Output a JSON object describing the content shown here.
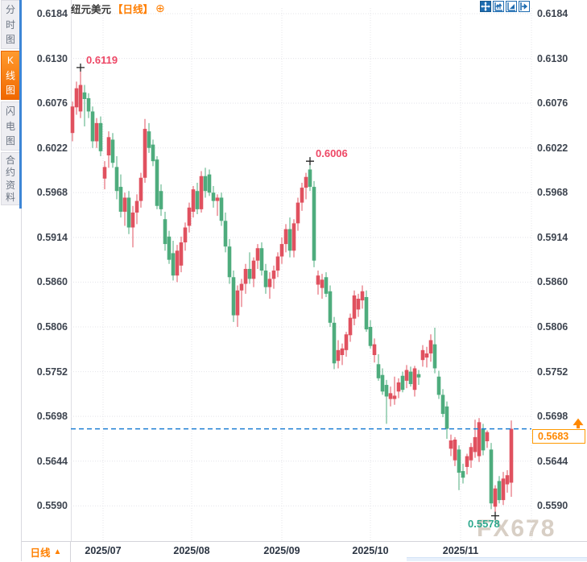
{
  "header": {
    "symbol": "纽元美元",
    "period_tag": "【日线】",
    "add_icon": "⊕",
    "toolbar": [
      "pan-tool",
      "zoom-y-axis-tool",
      "zoom-x-axis-tool",
      "scroll-to-latest-tool"
    ]
  },
  "sidebar": {
    "tabs": [
      {
        "label": "分时图",
        "active": false
      },
      {
        "label": "K线图",
        "active": true
      },
      {
        "label": "闪电图",
        "active": false
      },
      {
        "label": "合约资料",
        "active": false
      }
    ]
  },
  "bottom_bar": {
    "period_label": "日线",
    "arrow": "▲"
  },
  "watermark": "FX678",
  "chart_data": {
    "type": "candlestick",
    "title": "纽元美元 日线",
    "convention": "red-up green-down",
    "up_color": "#e0515f",
    "down_color": "#4eac7d",
    "grid_color": "#e4e4e9",
    "dashed_line_color": "#1e7fd4",
    "high_label_color": "#ee4866",
    "low_label_color": "#2fa98e",
    "accent_orange": "#ff8800",
    "toolbar_blue": "#1e6cb0",
    "y_tick_labels": [
      "0.6184",
      "0.6130",
      "0.6076",
      "0.6022",
      "0.5968",
      "0.5914",
      "0.5860",
      "0.5806",
      "0.5752",
      "0.5698",
      "0.5644",
      "0.5590"
    ],
    "x_tick_labels": [
      "2025/07",
      "2025/08",
      "2025/09",
      "2025/10",
      "2025/11"
    ],
    "ylim": [
      0.5547,
      0.6201
    ],
    "grid": true,
    "current_price": 0.5683,
    "current_price_label": "0.5683",
    "annotations": [
      {
        "kind": "high",
        "index": 2,
        "label": "0.6119"
      },
      {
        "kind": "high",
        "index": 59,
        "label": "0.6006"
      },
      {
        "kind": "low",
        "index": 105,
        "label": "0.5578"
      }
    ],
    "candles_format": [
      "open",
      "high",
      "low",
      "close"
    ],
    "candles": [
      [
        0.604,
        0.6078,
        0.603,
        0.6072
      ],
      [
        0.6071,
        0.6102,
        0.6062,
        0.6094
      ],
      [
        0.6066,
        0.6119,
        0.6058,
        0.6098
      ],
      [
        0.6089,
        0.6098,
        0.6048,
        0.6081
      ],
      [
        0.6082,
        0.6088,
        0.6058,
        0.6066
      ],
      [
        0.6066,
        0.6072,
        0.6022,
        0.603
      ],
      [
        0.603,
        0.6058,
        0.6022,
        0.6052
      ],
      [
        0.6052,
        0.606,
        0.6012,
        0.6018
      ],
      [
        0.5985,
        0.6006,
        0.5972,
        0.5999
      ],
      [
        0.6013,
        0.6042,
        0.5998,
        0.6035
      ],
      [
        0.6032,
        0.604,
        0.5998,
        0.6004
      ],
      [
        0.5999,
        0.6012,
        0.596,
        0.597
      ],
      [
        0.5975,
        0.599,
        0.5938,
        0.5945
      ],
      [
        0.5945,
        0.5968,
        0.5928,
        0.5962
      ],
      [
        0.5962,
        0.597,
        0.5918,
        0.5926
      ],
      [
        0.5926,
        0.5952,
        0.5902,
        0.5944
      ],
      [
        0.5944,
        0.5966,
        0.593,
        0.5958
      ],
      [
        0.5958,
        0.5992,
        0.595,
        0.5986
      ],
      [
        0.5986,
        0.6057,
        0.598,
        0.6045
      ],
      [
        0.6042,
        0.6052,
        0.6016,
        0.6022
      ],
      [
        0.6026,
        0.6032,
        0.6,
        0.6006
      ],
      [
        0.6008,
        0.6012,
        0.5948,
        0.5952
      ],
      [
        0.597,
        0.5978,
        0.594,
        0.5948
      ],
      [
        0.5936,
        0.5945,
        0.5898,
        0.5906
      ],
      [
        0.5915,
        0.5922,
        0.5882,
        0.5887
      ],
      [
        0.5895,
        0.591,
        0.5862,
        0.5868
      ],
      [
        0.5868,
        0.5905,
        0.586,
        0.5898
      ],
      [
        0.588,
        0.5915,
        0.5872,
        0.5908
      ],
      [
        0.5908,
        0.5932,
        0.5898,
        0.5926
      ],
      [
        0.5928,
        0.5956,
        0.592,
        0.595
      ],
      [
        0.5945,
        0.5976,
        0.5938,
        0.5972
      ],
      [
        0.597,
        0.598,
        0.5942,
        0.5948
      ],
      [
        0.5948,
        0.5994,
        0.5944,
        0.5988
      ],
      [
        0.5988,
        0.5998,
        0.5962,
        0.597
      ],
      [
        0.599,
        0.5996,
        0.5964,
        0.5968
      ],
      [
        0.5968,
        0.5976,
        0.595,
        0.5958
      ],
      [
        0.5958,
        0.5966,
        0.594,
        0.5962
      ],
      [
        0.5962,
        0.5968,
        0.5928,
        0.5934
      ],
      [
        0.5934,
        0.5944,
        0.5896,
        0.5903
      ],
      [
        0.5903,
        0.5912,
        0.5858,
        0.5866
      ],
      [
        0.5866,
        0.5874,
        0.5812,
        0.582
      ],
      [
        0.582,
        0.5856,
        0.5806,
        0.585
      ],
      [
        0.585,
        0.5864,
        0.583,
        0.5858
      ],
      [
        0.5858,
        0.5882,
        0.5846,
        0.5876
      ],
      [
        0.5876,
        0.5896,
        0.5858,
        0.5864
      ],
      [
        0.5864,
        0.589,
        0.5854,
        0.5886
      ],
      [
        0.5886,
        0.5906,
        0.5876,
        0.5901
      ],
      [
        0.5901,
        0.5908,
        0.5868,
        0.5874
      ],
      [
        0.5874,
        0.5882,
        0.5846,
        0.5854
      ],
      [
        0.5854,
        0.5872,
        0.584,
        0.5864
      ],
      [
        0.5864,
        0.588,
        0.5852,
        0.5874
      ],
      [
        0.5874,
        0.5896,
        0.5866,
        0.5891
      ],
      [
        0.5891,
        0.5914,
        0.5882,
        0.5906
      ],
      [
        0.5906,
        0.593,
        0.5896,
        0.5924
      ],
      [
        0.5924,
        0.5938,
        0.589,
        0.5898
      ],
      [
        0.5898,
        0.5936,
        0.589,
        0.5931
      ],
      [
        0.5931,
        0.5962,
        0.5922,
        0.5956
      ],
      [
        0.5956,
        0.598,
        0.5946,
        0.5974
      ],
      [
        0.5974,
        0.5992,
        0.596,
        0.5987
      ],
      [
        0.5996,
        0.6006,
        0.597,
        0.5975
      ],
      [
        0.5975,
        0.5982,
        0.5878,
        0.5886
      ],
      [
        0.5857,
        0.5874,
        0.5845,
        0.5868
      ],
      [
        0.5853,
        0.587,
        0.584,
        0.5863
      ],
      [
        0.5866,
        0.5872,
        0.5842,
        0.5846
      ],
      [
        0.5849,
        0.5856,
        0.5806,
        0.5811
      ],
      [
        0.5811,
        0.5818,
        0.5755,
        0.5762
      ],
      [
        0.5765,
        0.579,
        0.5756,
        0.5778
      ],
      [
        0.5772,
        0.5786,
        0.576,
        0.578
      ],
      [
        0.5778,
        0.58,
        0.577,
        0.5797
      ],
      [
        0.5796,
        0.5822,
        0.5788,
        0.5817
      ],
      [
        0.5816,
        0.585,
        0.5808,
        0.5844
      ],
      [
        0.5827,
        0.5846,
        0.5818,
        0.584
      ],
      [
        0.5838,
        0.5856,
        0.5828,
        0.5849
      ],
      [
        0.5842,
        0.585,
        0.58,
        0.5803
      ],
      [
        0.5806,
        0.5814,
        0.578,
        0.5783
      ],
      [
        0.5772,
        0.5792,
        0.5763,
        0.5785
      ],
      [
        0.5761,
        0.5773,
        0.5741,
        0.5744
      ],
      [
        0.5748,
        0.5756,
        0.5724,
        0.5728
      ],
      [
        0.5736,
        0.5742,
        0.5689,
        0.5722
      ],
      [
        0.5719,
        0.5734,
        0.571,
        0.5726
      ],
      [
        0.5719,
        0.5746,
        0.5712,
        0.5723
      ],
      [
        0.5728,
        0.5744,
        0.572,
        0.5739
      ],
      [
        0.5747,
        0.5752,
        0.5727,
        0.573
      ],
      [
        0.5741,
        0.576,
        0.5732,
        0.5754
      ],
      [
        0.5752,
        0.5758,
        0.5734,
        0.5737
      ],
      [
        0.573,
        0.5759,
        0.5722,
        0.5756
      ],
      [
        0.5749,
        0.5754,
        0.5736,
        0.5745
      ],
      [
        0.5766,
        0.5784,
        0.5758,
        0.5778
      ],
      [
        0.5769,
        0.5782,
        0.5757,
        0.5774
      ],
      [
        0.5774,
        0.5797,
        0.5764,
        0.579
      ],
      [
        0.5785,
        0.5805,
        0.575,
        0.5756
      ],
      [
        0.5746,
        0.5753,
        0.5719,
        0.5724
      ],
      [
        0.5724,
        0.5731,
        0.5697,
        0.5701
      ],
      [
        0.571,
        0.5716,
        0.5671,
        0.5683
      ],
      [
        0.5659,
        0.5676,
        0.565,
        0.5669
      ],
      [
        0.5645,
        0.5673,
        0.5638,
        0.567
      ],
      [
        0.5658,
        0.5663,
        0.5609,
        0.563
      ],
      [
        0.5632,
        0.5641,
        0.5617,
        0.5624
      ],
      [
        0.5637,
        0.5653,
        0.5628,
        0.565
      ],
      [
        0.5645,
        0.5666,
        0.5636,
        0.5661
      ],
      [
        0.5655,
        0.5694,
        0.5648,
        0.5673
      ],
      [
        0.565,
        0.5696,
        0.5643,
        0.5691
      ],
      [
        0.5683,
        0.5689,
        0.5651,
        0.5657
      ],
      [
        0.5668,
        0.5681,
        0.566,
        0.5679
      ],
      [
        0.5658,
        0.5666,
        0.5586,
        0.5593
      ],
      [
        0.5589,
        0.5615,
        0.5578,
        0.5611
      ],
      [
        0.562,
        0.5626,
        0.5593,
        0.5597
      ],
      [
        0.5597,
        0.5631,
        0.5591,
        0.5623
      ],
      [
        0.5616,
        0.5633,
        0.5606,
        0.5627
      ],
      [
        0.5618,
        0.5693,
        0.5601,
        0.5683
      ]
    ],
    "layout": {
      "legend": false,
      "month_grid_x": [
        128,
        238,
        350,
        460,
        572
      ],
      "plot_right_grid_x": 660
    }
  }
}
